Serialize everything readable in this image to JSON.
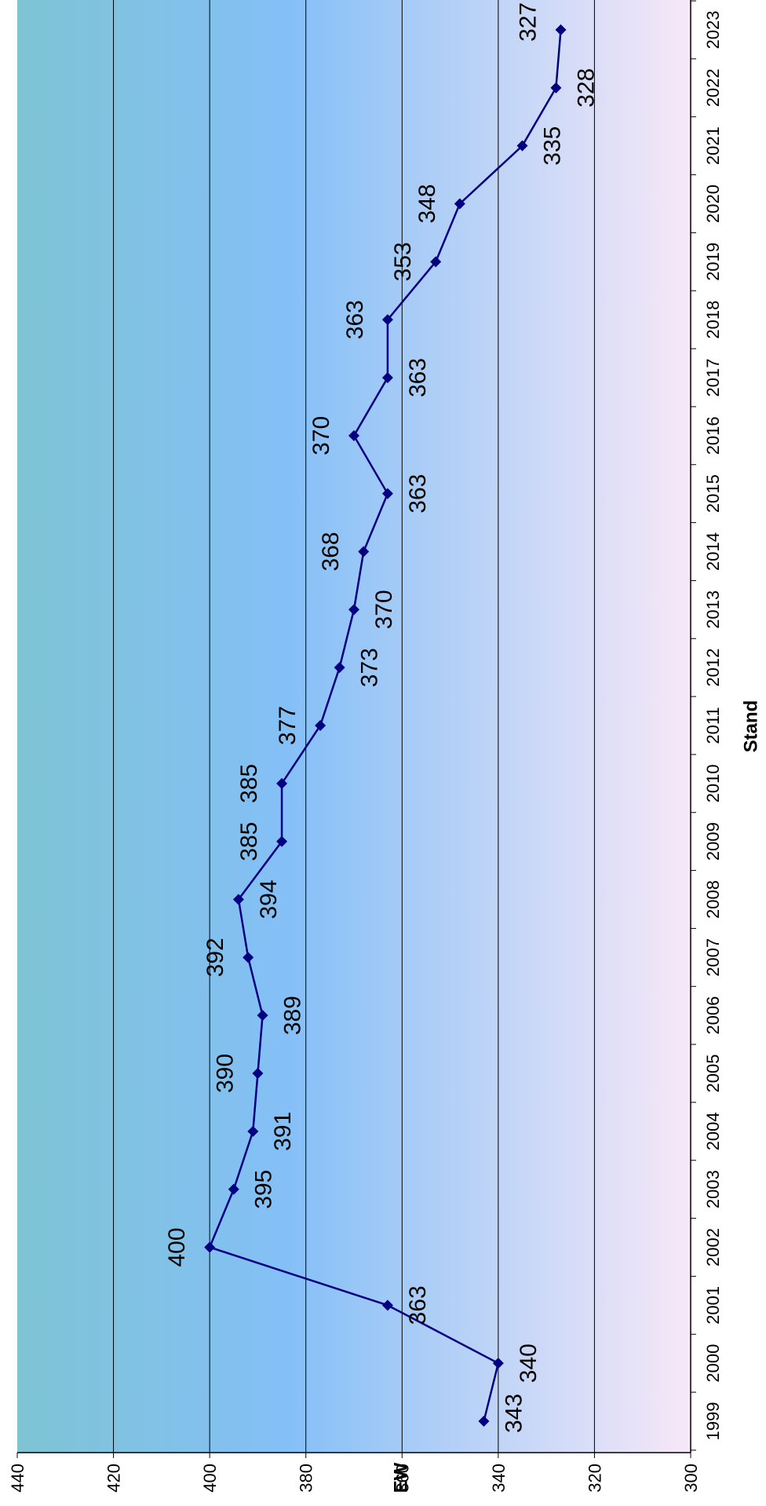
{
  "chart_data": {
    "type": "line",
    "orientation": "rotated 90 degrees clockwise",
    "title": "",
    "xlabel": "Stand",
    "ylabel": "EW",
    "x": [
      1999,
      2000,
      2001,
      2002,
      2003,
      2004,
      2005,
      2006,
      2007,
      2008,
      2009,
      2010,
      2011,
      2012,
      2013,
      2014,
      2015,
      2016,
      2017,
      2018,
      2019,
      2020,
      2021,
      2022,
      2023
    ],
    "values": [
      343,
      340,
      363,
      400,
      395,
      391,
      390,
      389,
      392,
      394,
      385,
      385,
      377,
      373,
      370,
      368,
      363,
      370,
      363,
      363,
      353,
      348,
      335,
      328,
      327
    ],
    "data_labels": [
      "343",
      "340",
      "363",
      "400",
      "395",
      "391",
      "390",
      "389",
      "392",
      "394",
      "385",
      "385",
      "377",
      "373",
      "370",
      "368",
      "363",
      "370",
      "363",
      "363",
      "353",
      "348",
      "335",
      "328",
      "327"
    ],
    "ylim": [
      300,
      440
    ],
    "yticks": [
      "300",
      "320",
      "340",
      "360",
      "380",
      "400",
      "420",
      "440"
    ],
    "grid": true,
    "legend": "none",
    "colors": {
      "line": "#000080",
      "background_left": "#7ec4d4",
      "background_middle": "#84bff7",
      "background_right": "#f7e8f7",
      "grid": "#000000"
    }
  }
}
